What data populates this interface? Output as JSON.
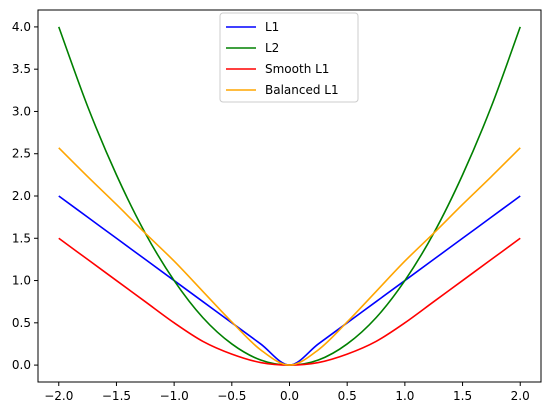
{
  "chart_data": {
    "type": "line",
    "title": "",
    "xlabel": "",
    "ylabel": "",
    "xlim": [
      -2.18,
      2.18
    ],
    "ylim": [
      -0.2,
      4.2
    ],
    "xticks": [
      -2.0,
      -1.5,
      -1.0,
      -0.5,
      0.0,
      0.5,
      1.0,
      1.5,
      2.0
    ],
    "xtick_labels": [
      "−2.0",
      "−1.5",
      "−1.0",
      "−0.5",
      "0.0",
      "0.5",
      "1.0",
      "1.5",
      "2.0"
    ],
    "yticks": [
      0.0,
      0.5,
      1.0,
      1.5,
      2.0,
      2.5,
      3.0,
      3.5,
      4.0
    ],
    "ytick_labels": [
      "0.0",
      "0.5",
      "1.0",
      "1.5",
      "2.0",
      "2.5",
      "3.0",
      "3.5",
      "4.0"
    ],
    "grid": false,
    "legend_placement": "upper center",
    "x": [
      -2.0,
      -1.75,
      -1.5,
      -1.25,
      -1.0,
      -0.75,
      -0.5,
      -0.25,
      0.0,
      0.25,
      0.5,
      0.75,
      1.0,
      1.25,
      1.5,
      1.75,
      2.0
    ],
    "series": [
      {
        "name": "L1",
        "color": "#0000ff",
        "values": [
          2.0,
          1.75,
          1.5,
          1.25,
          1.0,
          0.75,
          0.5,
          0.25,
          0.0,
          0.25,
          0.5,
          0.75,
          1.0,
          1.25,
          1.5,
          1.75,
          2.0
        ]
      },
      {
        "name": "L2",
        "color": "#008000",
        "values": [
          4.0,
          3.06,
          2.25,
          1.56,
          1.0,
          0.56,
          0.25,
          0.06,
          0.0,
          0.06,
          0.25,
          0.56,
          1.0,
          1.56,
          2.25,
          3.06,
          4.0
        ]
      },
      {
        "name": "Smooth L1",
        "color": "#ff0000",
        "values": [
          1.5,
          1.25,
          1.0,
          0.75,
          0.5,
          0.28,
          0.13,
          0.03,
          0.0,
          0.03,
          0.13,
          0.28,
          0.5,
          0.75,
          1.0,
          1.25,
          1.5
        ]
      },
      {
        "name": "Balanced L1",
        "color": "#ffa500",
        "values": [
          2.57,
          2.23,
          1.9,
          1.56,
          1.23,
          0.87,
          0.51,
          0.18,
          0.0,
          0.18,
          0.51,
          0.87,
          1.23,
          1.56,
          1.9,
          2.23,
          2.57
        ]
      }
    ]
  }
}
